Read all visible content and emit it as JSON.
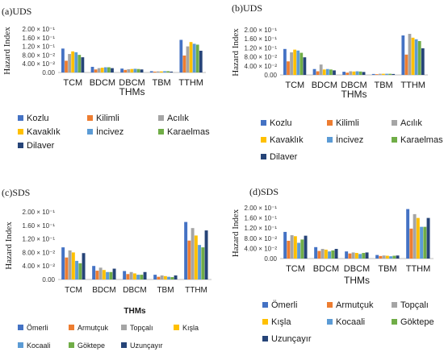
{
  "chart_data": [
    {
      "type": "bar",
      "panel_label": "(a)UDS",
      "ylabel": "Hazard Index",
      "xlabel": "THMs",
      "categories": [
        "TCM",
        "BDCM",
        "DBCM",
        "TBM",
        "TTHM"
      ],
      "y_ticks": [
        "0.00",
        "4.00 × 10⁻²",
        "8.00 × 10⁻²",
        "1.20 × 10⁻¹",
        "1.60 × 10⁻¹",
        "2.00 × 10⁻¹"
      ],
      "ylim": [
        0,
        0.2
      ],
      "legend_position": "bottom",
      "series": [
        {
          "name": "Kozlu",
          "color": "#4472c4",
          "values": [
            0.11,
            0.026,
            0.018,
            0.006,
            0.15
          ]
        },
        {
          "name": "Kilimli",
          "color": "#ed7d31",
          "values": [
            0.054,
            0.014,
            0.012,
            0.004,
            0.078
          ]
        },
        {
          "name": "Acılık",
          "color": "#a5a5a5",
          "values": [
            0.085,
            0.02,
            0.015,
            0.005,
            0.12
          ]
        },
        {
          "name": "Kavaklık",
          "color": "#ffc000",
          "values": [
            0.097,
            0.022,
            0.016,
            0.005,
            0.14
          ]
        },
        {
          "name": "İncivez",
          "color": "#5b9bd5",
          "values": [
            0.093,
            0.024,
            0.017,
            0.006,
            0.132
          ]
        },
        {
          "name": "Karaelmas",
          "color": "#70ad47",
          "values": [
            0.081,
            0.024,
            0.016,
            0.006,
            0.128
          ]
        },
        {
          "name": "Dilaver",
          "color": "#264478",
          "values": [
            0.07,
            0.02,
            0.014,
            0.004,
            0.1
          ]
        }
      ]
    },
    {
      "type": "bar",
      "panel_label": "(b)UDS",
      "ylabel": "Hazard Index",
      "xlabel": "THMs",
      "categories": [
        "TCM",
        "BDCM",
        "DBCM",
        "TBM",
        "TTHM"
      ],
      "y_ticks": [
        "0.00",
        "4.00 × 10⁻²",
        "8.00 × 10⁻²",
        "1.20 × 10⁻¹",
        "1.60 × 10⁻¹",
        "2.00 × 10⁻¹"
      ],
      "ylim": [
        0,
        0.2
      ],
      "legend_position": "bottom",
      "series": [
        {
          "name": "Kozlu",
          "color": "#4472c4",
          "values": [
            0.115,
            0.026,
            0.014,
            0.004,
            0.175
          ]
        },
        {
          "name": "Kilimli",
          "color": "#ed7d31",
          "values": [
            0.06,
            0.016,
            0.01,
            0.003,
            0.09
          ]
        },
        {
          "name": "Acılık",
          "color": "#a5a5a5",
          "values": [
            0.1,
            0.046,
            0.016,
            0.005,
            0.182
          ]
        },
        {
          "name": "Kavaklık",
          "color": "#ffc000",
          "values": [
            0.112,
            0.024,
            0.015,
            0.005,
            0.165
          ]
        },
        {
          "name": "İncivez",
          "color": "#5b9bd5",
          "values": [
            0.108,
            0.026,
            0.016,
            0.005,
            0.158
          ]
        },
        {
          "name": "Karaelmas",
          "color": "#70ad47",
          "values": [
            0.098,
            0.024,
            0.015,
            0.005,
            0.15
          ]
        },
        {
          "name": "Dilaver",
          "color": "#264478",
          "values": [
            0.078,
            0.02,
            0.013,
            0.004,
            0.118
          ]
        }
      ]
    },
    {
      "type": "bar",
      "panel_label": "(c)SDS",
      "ylabel": "Hazard Index",
      "xlabel": "THMs",
      "categories": [
        "TCM",
        "BDCM",
        "DBCM",
        "TBM",
        "TTHM"
      ],
      "y_ticks": [
        "0.00",
        "4.00 × 10⁻²",
        "8.00 × 10⁻²",
        "1.20 × 10⁻¹",
        "1.60 × 10⁻¹",
        "2.00 × 10⁻¹"
      ],
      "ylim": [
        0,
        0.2
      ],
      "legend_position": "bottom",
      "series": [
        {
          "name": "Ömerli",
          "color": "#4472c4",
          "values": [
            0.095,
            0.04,
            0.025,
            0.014,
            0.17
          ]
        },
        {
          "name": "Armutçuk",
          "color": "#ed7d31",
          "values": [
            0.065,
            0.026,
            0.016,
            0.008,
            0.115
          ]
        },
        {
          "name": "Topçalı",
          "color": "#a5a5a5",
          "values": [
            0.086,
            0.035,
            0.022,
            0.012,
            0.152
          ]
        },
        {
          "name": "Kışla",
          "color": "#ffc000",
          "values": [
            0.08,
            0.028,
            0.018,
            0.01,
            0.13
          ]
        },
        {
          "name": "Kocaali",
          "color": "#5b9bd5",
          "values": [
            0.055,
            0.022,
            0.014,
            0.008,
            0.102
          ]
        },
        {
          "name": "Göktepe",
          "color": "#70ad47",
          "values": [
            0.048,
            0.022,
            0.014,
            0.007,
            0.095
          ]
        },
        {
          "name": "Uzunçayır",
          "color": "#264478",
          "values": [
            0.078,
            0.032,
            0.022,
            0.012,
            0.145
          ]
        }
      ]
    },
    {
      "type": "bar",
      "panel_label": "(d)SDS",
      "ylabel": "Hazard Index",
      "xlabel": "THMs",
      "categories": [
        "TCM",
        "BDCM",
        "DBCM",
        "TBM",
        "TTHM"
      ],
      "y_ticks": [
        "0.00",
        "4.00 × 10⁻²",
        "8.00 × 10⁻²",
        "1.20 × 10⁻¹",
        "1.60 × 10⁻¹",
        "2.00 × 10⁻¹"
      ],
      "ylim": [
        0,
        0.2
      ],
      "legend_position": "bottom",
      "series": [
        {
          "name": "Ömerli",
          "color": "#4472c4",
          "values": [
            0.105,
            0.045,
            0.028,
            0.014,
            0.195
          ]
        },
        {
          "name": "Armutçuk",
          "color": "#ed7d31",
          "values": [
            0.07,
            0.03,
            0.02,
            0.01,
            0.118
          ]
        },
        {
          "name": "Topçalı",
          "color": "#a5a5a5",
          "values": [
            0.092,
            0.038,
            0.024,
            0.012,
            0.175
          ]
        },
        {
          "name": "Kışla",
          "color": "#ffc000",
          "values": [
            0.088,
            0.035,
            0.022,
            0.011,
            0.16
          ]
        },
        {
          "name": "Kocaali",
          "color": "#5b9bd5",
          "values": [
            0.062,
            0.028,
            0.018,
            0.009,
            0.125
          ]
        },
        {
          "name": "Göktepe",
          "color": "#70ad47",
          "values": [
            0.075,
            0.032,
            0.022,
            0.011,
            0.125
          ]
        },
        {
          "name": "Uzunçayır",
          "color": "#264478",
          "values": [
            0.09,
            0.038,
            0.024,
            0.012,
            0.16
          ]
        }
      ]
    }
  ]
}
